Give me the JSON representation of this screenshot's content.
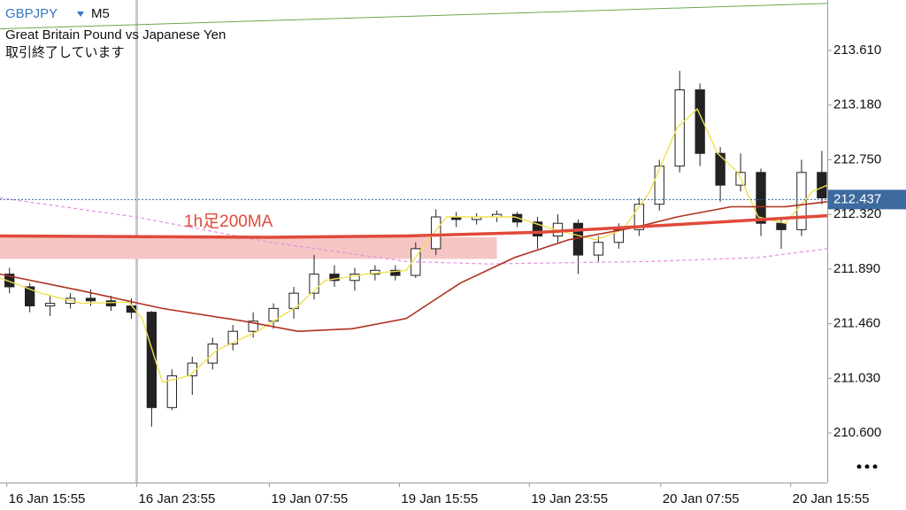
{
  "chart_data": {
    "type": "candlestick",
    "symbol": "GBPJPY",
    "timeframe": "M5",
    "subtitle": "Great Britain Pound vs Japanese Yen",
    "status": "取引終了しています",
    "annotation": "1h足200MA",
    "xlim": [
      0,
      611
    ],
    "xticks": [
      {
        "value": 5,
        "label": "16 Jan 15:55"
      },
      {
        "value": 101,
        "label": "16 Jan 23:55"
      },
      {
        "value": 199,
        "label": "19 Jan 07:55"
      },
      {
        "value": 295,
        "label": "19 Jan 15:55"
      },
      {
        "value": 391,
        "label": "19 Jan 23:55"
      },
      {
        "value": 488,
        "label": "20 Jan 07:55"
      },
      {
        "value": 584,
        "label": "20 Jan 15:55"
      }
    ],
    "ylim": [
      210.21,
      214.007
    ],
    "yticks": [
      {
        "value": 213.61,
        "label": "213.610"
      },
      {
        "value": 213.18,
        "label": "213.180"
      },
      {
        "value": 212.75,
        "label": "212.750"
      },
      {
        "value": 212.32,
        "label": "212.320"
      },
      {
        "value": 211.89,
        "label": "211.890"
      },
      {
        "value": 211.46,
        "label": "211.460"
      },
      {
        "value": 211.03,
        "label": "211.030"
      },
      {
        "value": 210.6,
        "label": "210.600"
      }
    ],
    "current_price": 212.437,
    "separator": 101,
    "candle_color": "#222222",
    "x": [
      7,
      22,
      37,
      52,
      67,
      82,
      97,
      112,
      127,
      142,
      157,
      172,
      187,
      202,
      217,
      232,
      247,
      262,
      277,
      292,
      307,
      322,
      337,
      352,
      367,
      382,
      397,
      412,
      427,
      442,
      457,
      472,
      487,
      502,
      517,
      532,
      547,
      562,
      577,
      592,
      607
    ],
    "open": [
      211.85,
      211.75,
      211.6,
      211.62,
      211.66,
      211.64,
      211.6,
      211.55,
      210.8,
      211.05,
      211.15,
      211.3,
      211.4,
      211.48,
      211.58,
      211.7,
      211.85,
      211.8,
      211.85,
      211.88,
      211.84,
      212.05,
      212.3,
      212.28,
      212.3,
      212.32,
      212.26,
      212.15,
      212.25,
      212.0,
      212.1,
      212.2,
      212.4,
      212.7,
      213.3,
      212.8,
      212.55,
      212.65,
      212.25,
      212.2,
      212.65
    ],
    "high": [
      211.9,
      211.78,
      211.68,
      211.7,
      211.73,
      211.68,
      211.66,
      211.56,
      211.1,
      211.2,
      211.35,
      211.45,
      211.55,
      211.62,
      211.75,
      212.0,
      211.92,
      211.9,
      211.92,
      211.92,
      212.1,
      212.36,
      212.34,
      212.33,
      212.35,
      212.34,
      212.3,
      212.32,
      212.28,
      212.15,
      212.25,
      212.45,
      212.75,
      213.45,
      213.35,
      212.85,
      212.8,
      212.68,
      212.3,
      212.75,
      212.82
    ],
    "low": [
      211.7,
      211.55,
      211.52,
      211.58,
      211.6,
      211.56,
      211.5,
      210.65,
      210.78,
      210.9,
      211.1,
      211.25,
      211.35,
      211.42,
      211.5,
      211.65,
      211.75,
      211.72,
      211.8,
      211.8,
      211.82,
      212.0,
      212.22,
      212.24,
      212.26,
      212.22,
      212.05,
      212.1,
      211.85,
      211.95,
      212.05,
      212.15,
      212.35,
      212.65,
      212.7,
      212.42,
      212.5,
      212.15,
      212.05,
      212.15,
      212.4
    ],
    "close": [
      211.75,
      211.6,
      211.62,
      211.66,
      211.64,
      211.6,
      211.55,
      210.8,
      211.05,
      211.15,
      211.3,
      211.4,
      211.48,
      211.58,
      211.7,
      211.85,
      211.8,
      211.85,
      211.88,
      211.84,
      212.05,
      212.3,
      212.28,
      212.3,
      212.32,
      212.26,
      212.15,
      212.25,
      212.0,
      212.1,
      212.2,
      212.4,
      212.7,
      213.3,
      212.8,
      212.55,
      212.65,
      212.25,
      212.2,
      212.65,
      212.45
    ],
    "zone": {
      "color": "#f5c6c4",
      "x": [
        0,
        367
      ],
      "values": [
        211.97,
        212.14
      ]
    },
    "lines": [
      {
        "color": "#6aa84f",
        "width": 1,
        "x": [
          0,
          611
        ],
        "values": [
          213.78,
          213.98
        ]
      },
      {
        "color": "#e88fe0",
        "width": 1.2,
        "dash": true,
        "x": [
          0,
          100,
          200,
          300,
          360,
          480,
          560,
          611
        ],
        "values": [
          212.45,
          212.3,
          212.1,
          211.95,
          211.93,
          211.95,
          211.98,
          212.05
        ]
      },
      {
        "color": "#f0e050",
        "width": 1.4,
        "x": [
          0,
          30,
          60,
          95,
          105,
          120,
          140,
          160,
          190,
          220,
          240,
          270,
          300,
          315,
          330,
          380,
          410,
          440,
          460,
          480,
          500,
          515,
          530,
          545,
          560,
          580,
          600,
          611
        ],
        "values": [
          211.82,
          211.7,
          211.62,
          211.63,
          211.5,
          211.0,
          211.05,
          211.25,
          211.4,
          211.6,
          211.8,
          211.85,
          211.88,
          212.1,
          212.3,
          212.3,
          212.2,
          212.12,
          212.2,
          212.5,
          213.0,
          213.15,
          212.8,
          212.65,
          212.3,
          212.25,
          212.5,
          212.55
        ]
      },
      {
        "color": "#b03020",
        "width": 1.6,
        "x": [
          0,
          60,
          120,
          180,
          220,
          260,
          300,
          340,
          380,
          420,
          470,
          500,
          540,
          580,
          611
        ],
        "values": [
          211.85,
          211.72,
          211.58,
          211.48,
          211.4,
          211.42,
          211.5,
          211.78,
          211.98,
          212.12,
          212.22,
          212.3,
          212.38,
          212.38,
          212.42
        ]
      },
      {
        "color": "#e04a3a",
        "width": 3.5,
        "x": [
          0,
          200,
          300,
          400,
          500,
          611
        ],
        "values": [
          212.15,
          212.14,
          212.15,
          212.18,
          212.24,
          212.31
        ]
      }
    ]
  }
}
